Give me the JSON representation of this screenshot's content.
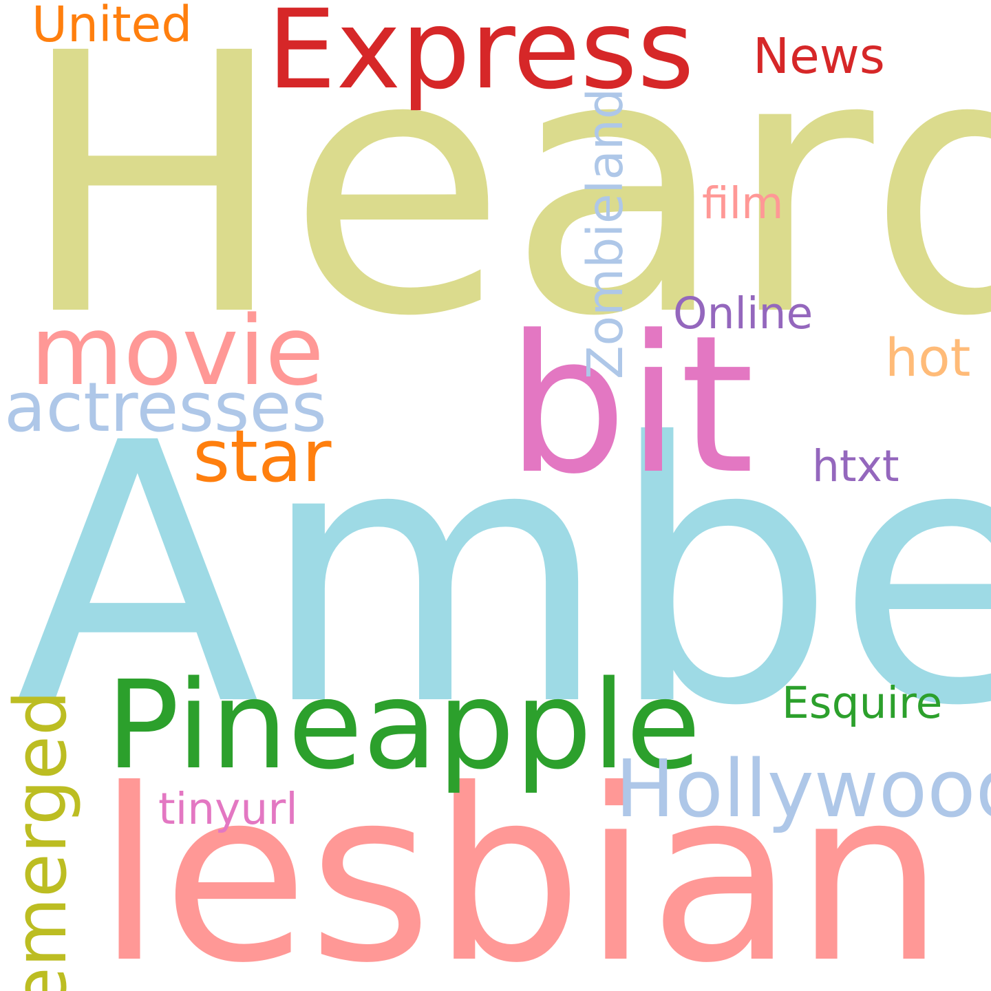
{
  "words": [
    {
      "text": "Heard",
      "color": "#dbdb8d"
    },
    {
      "text": "Amber",
      "color": "#9edae5"
    },
    {
      "text": "lesbian",
      "color": "#ff9896"
    },
    {
      "text": "bit",
      "color": "#e377c2"
    },
    {
      "text": "Pineapple",
      "color": "#2ca02c"
    },
    {
      "text": "Express",
      "color": "#d62728"
    },
    {
      "text": "movie",
      "color": "#ff9896"
    },
    {
      "text": "actresses",
      "color": "#aec7e8"
    },
    {
      "text": "Hollywood",
      "color": "#aec7e8"
    },
    {
      "text": "star",
      "color": "#ff7f0e"
    },
    {
      "text": "emerged",
      "color": "#bcbd22"
    },
    {
      "text": "Zombieland",
      "color": "#aec7e8"
    },
    {
      "text": "United",
      "color": "#ff7f0e"
    },
    {
      "text": "News",
      "color": "#d62728"
    },
    {
      "text": "film",
      "color": "#ff9896"
    },
    {
      "text": "Online",
      "color": "#9467bd"
    },
    {
      "text": "hot",
      "color": "#ffbb78"
    },
    {
      "text": "htxt",
      "color": "#9467bd"
    },
    {
      "text": "Esquire",
      "color": "#2ca02c"
    },
    {
      "text": "tinyurl",
      "color": "#e377c2"
    }
  ]
}
